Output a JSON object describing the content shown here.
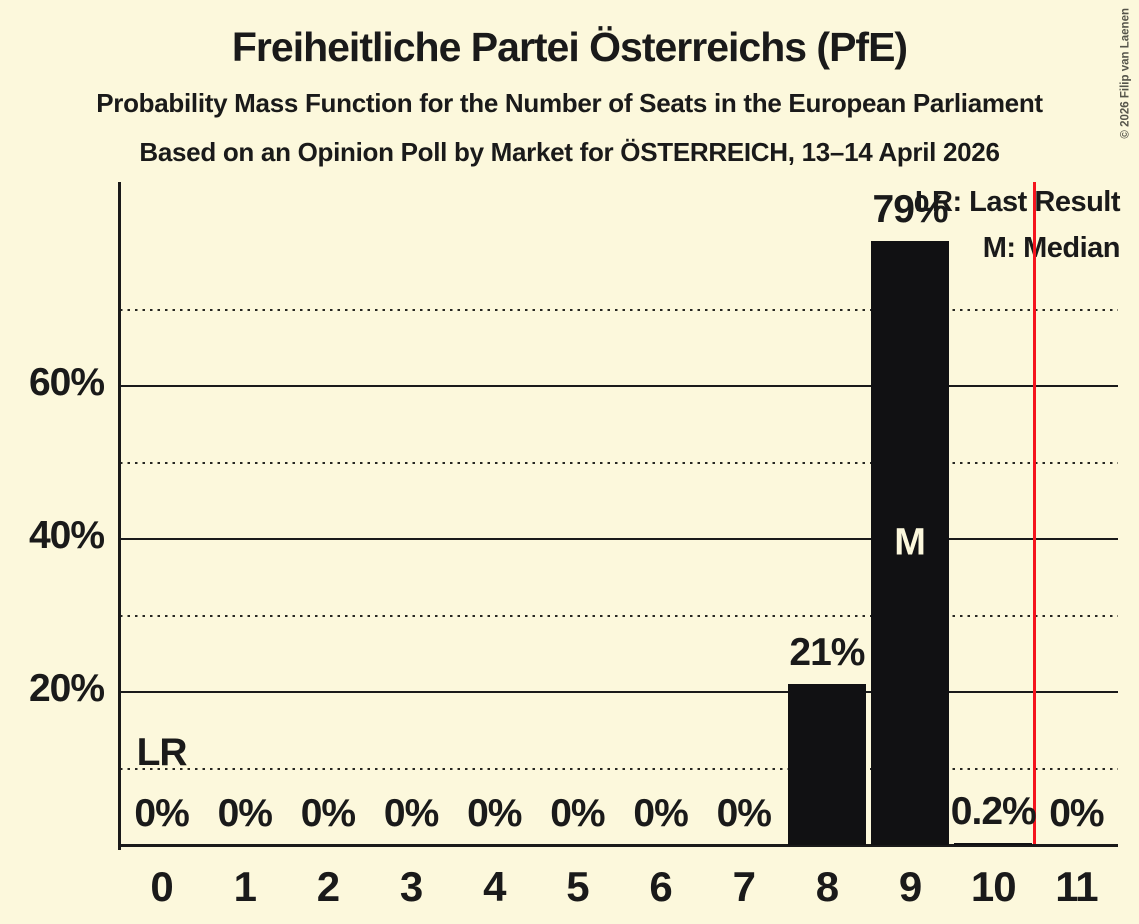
{
  "chart_data": {
    "type": "bar",
    "title": "Freiheitliche Partei Österreichs (PfE)",
    "subtitle": "Probability Mass Function for the Number of Seats in the European Parliament",
    "source_line": "Based on an Opinion Poll by Market for ÖSTERREICH, 13–14 April 2026",
    "xlabel": "",
    "ylabel": "",
    "categories": [
      "0",
      "1",
      "2",
      "3",
      "4",
      "5",
      "6",
      "7",
      "8",
      "9",
      "10",
      "11"
    ],
    "values": [
      0,
      0,
      0,
      0,
      0,
      0,
      0,
      0,
      21,
      79,
      0.2,
      0
    ],
    "bar_labels": [
      "0%",
      "0%",
      "0%",
      "0%",
      "0%",
      "0%",
      "0%",
      "0%",
      "21%",
      "79%",
      "0.2%",
      "0%"
    ],
    "ylim": [
      0,
      87
    ],
    "y_ticks": [
      {
        "value": 20,
        "label": "20%"
      },
      {
        "value": 40,
        "label": "40%"
      },
      {
        "value": 60,
        "label": "60%"
      }
    ],
    "solid_gridlines": [
      20,
      40,
      60
    ],
    "dotted_gridlines": [
      10,
      30,
      50,
      70
    ],
    "median": {
      "category": "9",
      "marker": "M"
    },
    "last_result": {
      "marker": "LR",
      "marker_category": "0",
      "marker_height_pct": 10,
      "line_between": [
        "10",
        "11"
      ]
    },
    "legend": [
      {
        "label": "LR: Last Result"
      },
      {
        "label": "M: Median"
      }
    ],
    "copyright": "© 2026 Filip van Laenen",
    "colors": {
      "background": "#FCF8DC",
      "bar": "#111113",
      "text": "#1A1A1A",
      "last_result_line": "#F5141E",
      "median_label": "#FCF8DC"
    }
  }
}
